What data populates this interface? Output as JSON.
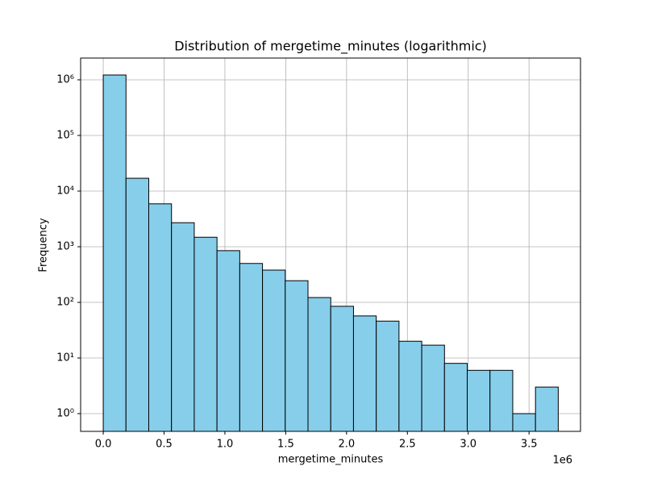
{
  "chart_data": {
    "type": "histogram",
    "title": "Distribution of mergetime_minutes (logarithmic)",
    "xlabel": "mergetime_minutes",
    "ylabel": "Frequency",
    "x_offset_label": "1e6",
    "bins": [
      0,
      187000,
      374000,
      561000,
      748000,
      935000,
      1122000,
      1309000,
      1496000,
      1683000,
      1870000,
      2057000,
      2244000,
      2431000,
      2618000,
      2805000,
      2992000,
      3179000,
      3366000,
      3553000,
      3740000
    ],
    "counts": [
      1220000,
      17000,
      5900,
      2700,
      1480,
      850,
      500,
      380,
      245,
      122,
      85,
      57,
      46,
      20,
      17,
      8,
      6,
      6,
      1,
      3
    ],
    "color": "#87ceeb",
    "edgecolor": "#000000",
    "xlim": [
      -186000,
      3923000
    ],
    "xticks": [
      {
        "value": 0,
        "label": "0.0"
      },
      {
        "value": 500000,
        "label": "0.5"
      },
      {
        "value": 1000000,
        "label": "1.0"
      },
      {
        "value": 1500000,
        "label": "1.5"
      },
      {
        "value": 2000000,
        "label": "2.0"
      },
      {
        "value": 2500000,
        "label": "2.5"
      },
      {
        "value": 3000000,
        "label": "3.0"
      },
      {
        "value": 3500000,
        "label": "3.5"
      }
    ],
    "ylim": [
      0.48,
      2460000
    ],
    "yticks": [
      {
        "value": 1,
        "label": "10⁰"
      },
      {
        "value": 10,
        "label": "10¹"
      },
      {
        "value": 100,
        "label": "10²"
      },
      {
        "value": 1000,
        "label": "10³"
      },
      {
        "value": 10000,
        "label": "10⁴"
      },
      {
        "value": 100000,
        "label": "10⁵"
      },
      {
        "value": 1000000,
        "label": "10⁶"
      }
    ],
    "ylog": true,
    "grid": true
  }
}
